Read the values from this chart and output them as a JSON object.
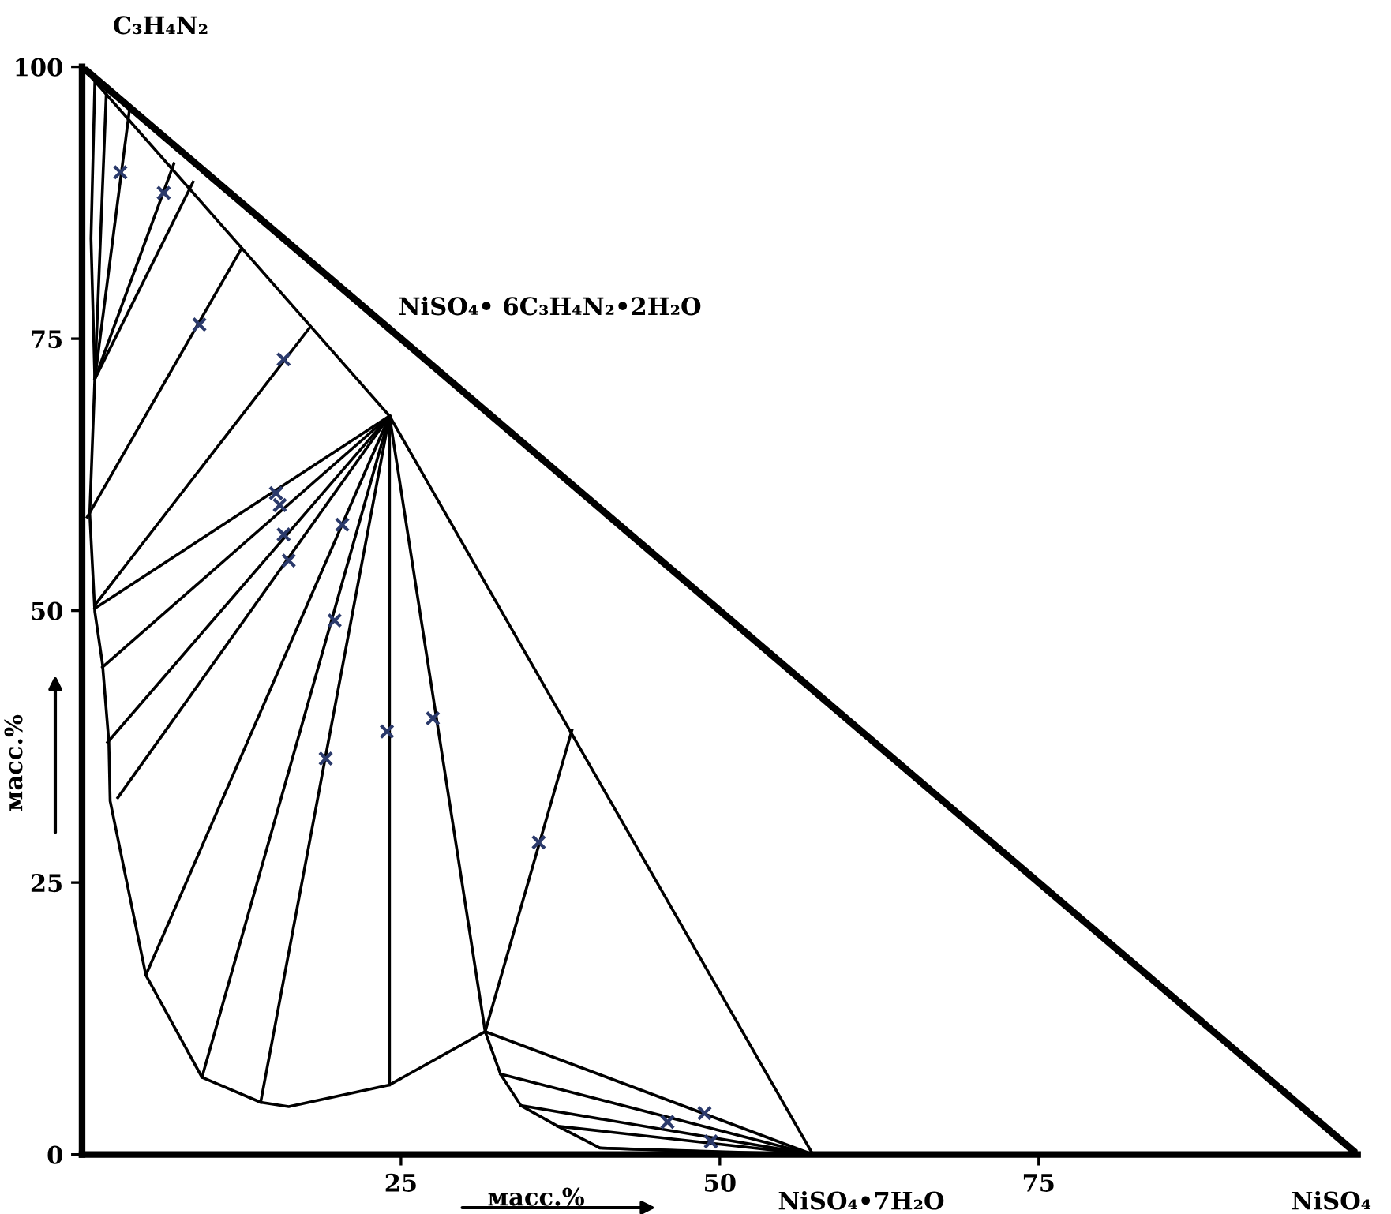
{
  "chart_data": {
    "type": "line",
    "xlabel": "масс.%",
    "ylabel": "масс.%",
    "xlim": [
      0,
      100
    ],
    "ylim": [
      0,
      100
    ],
    "xticks": [
      25,
      50,
      75
    ],
    "yticks": [
      0,
      25,
      50,
      75,
      100
    ],
    "annotations": [
      {
        "text": "C₃H₄N₂",
        "x": 0,
        "y": 100
      },
      "NiSO₄• 6C₃H₄N₂•2H₂O",
      {
        "text": "NiSO₄•7H₂O",
        "x": 57.3,
        "y": 0
      },
      {
        "text": "NiSO₄",
        "x": 100,
        "y": 0
      }
    ],
    "series": [
      {
        "color": "#000000",
        "x": [
          0,
          100
        ],
        "values": [
          100,
          0
        ]
      },
      {
        "color": "#000000",
        "x": [
          0,
          24.1,
          57.3
        ],
        "values": [
          100,
          67.9,
          0
        ]
      },
      {
        "color": "#000000",
        "x": [
          1.0,
          0.7,
          1.0,
          0.6,
          1.0,
          1.6,
          2.1,
          2.2,
          5.0,
          9.4,
          14.0,
          16.2,
          24.1,
          31.6,
          32.8,
          34.4,
          37.3,
          40.6,
          48,
          55
        ],
        "values": [
          98.5,
          84.2,
          71.3,
          58.9,
          49.9,
          45.1,
          37.9,
          32.5,
          16.5,
          7.1,
          4.8,
          4.4,
          6.4,
          11.3,
          7.4,
          4.5,
          2.6,
          0.6,
          0.3,
          0
        ]
      },
      {
        "color": "#000000",
        "x": [
          1.0,
          1.9
        ],
        "values": [
          71.3,
          97.6
        ]
      },
      {
        "color": "#000000",
        "x": [
          1.0,
          3.7
        ],
        "values": [
          71.3,
          95.9
        ]
      },
      {
        "color": "#000000",
        "x": [
          1.0,
          7.2
        ],
        "values": [
          71.3,
          91.1
        ]
      },
      {
        "color": "#000000",
        "x": [
          1.0,
          8.7
        ],
        "values": [
          71.3,
          89.4
        ]
      },
      {
        "color": "#000000",
        "x": [
          0.4,
          12.5
        ],
        "values": [
          58.6,
          83.3
        ]
      },
      {
        "color": "#000000",
        "x": [
          1.0,
          17.9
        ],
        "values": [
          50.5,
          76.1
        ]
      },
      {
        "color": "#000000",
        "x": [
          24.1,
          1.0
        ],
        "values": [
          67.9,
          50.2
        ]
      },
      {
        "color": "#000000",
        "x": [
          24.1,
          1.6
        ],
        "values": [
          67.9,
          44.8
        ]
      },
      {
        "color": "#000000",
        "x": [
          24.1,
          2.0
        ],
        "values": [
          67.9,
          37.9
        ]
      },
      {
        "color": "#000000",
        "x": [
          24.1,
          2.8
        ],
        "values": [
          67.9,
          32.8
        ]
      },
      {
        "color": "#000000",
        "x": [
          24.1,
          5.0
        ],
        "values": [
          67.9,
          16.5
        ]
      },
      {
        "color": "#000000",
        "x": [
          24.1,
          9.4
        ],
        "values": [
          67.9,
          7.1
        ]
      },
      {
        "color": "#000000",
        "x": [
          24.1,
          14.0
        ],
        "values": [
          67.9,
          4.8
        ]
      },
      {
        "color": "#000000",
        "x": [
          24.1,
          24.1
        ],
        "values": [
          67.9,
          6.4
        ]
      },
      {
        "color": "#000000",
        "x": [
          24.1,
          31.6
        ],
        "values": [
          67.9,
          11.3
        ]
      },
      {
        "color": "#000000",
        "x": [
          31.6,
          38.4
        ],
        "values": [
          11.3,
          39.0
        ]
      },
      {
        "color": "#000000",
        "x": [
          57.3,
          31.6
        ],
        "values": [
          0,
          11.3
        ]
      },
      {
        "color": "#000000",
        "x": [
          57.3,
          32.8
        ],
        "values": [
          0,
          7.4
        ]
      },
      {
        "color": "#000000",
        "x": [
          57.3,
          34.4
        ],
        "values": [
          0,
          4.5
        ]
      },
      {
        "color": "#000000",
        "x": [
          57.3,
          37.3
        ],
        "values": [
          0,
          2.6
        ]
      },
      {
        "color": "#000000",
        "x": [
          57.3,
          40.6
        ],
        "values": [
          0,
          0.6
        ]
      },
      {
        "type": "scatter",
        "marker": "cross",
        "color": "#2b3a6b",
        "x": [
          3.0,
          6.4,
          9.2,
          15.8,
          15.2,
          15.5,
          15.8,
          16.2,
          20.4,
          19.8,
          19.1,
          23.9,
          27.5,
          35.8,
          45.9,
          48.8,
          49.3
        ],
        "values": [
          90.3,
          88.4,
          76.3,
          73.1,
          60.8,
          59.7,
          57.0,
          54.6,
          57.9,
          49.1,
          36.4,
          38.9,
          40.1,
          28.7,
          3.0,
          3.8,
          1.2
        ]
      }
    ]
  }
}
